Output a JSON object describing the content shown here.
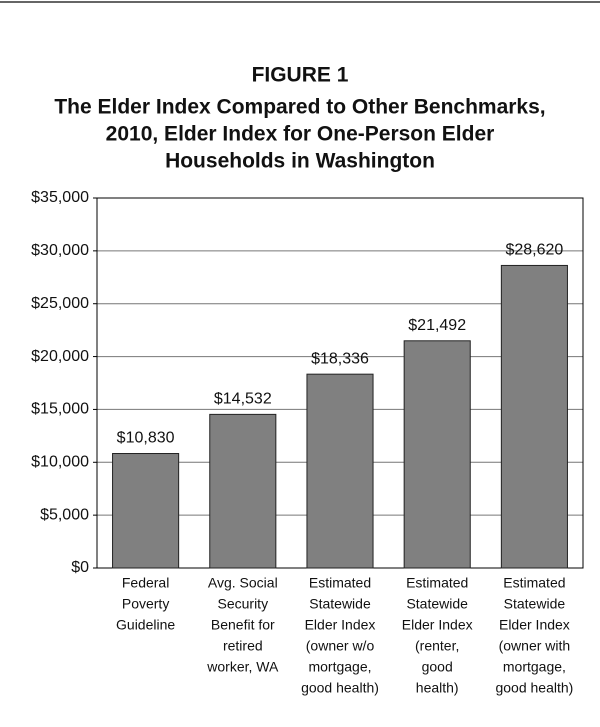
{
  "chart_data": {
    "type": "bar",
    "title": "FIGURE 1",
    "subtitle": [
      "The Elder Index Compared to Other Benchmarks,",
      "2010, Elder Index for One-Person Elder",
      "Households in Washington"
    ],
    "categories": [
      [
        "Federal",
        "Poverty",
        "Guideline"
      ],
      [
        "Avg. Social",
        "Security",
        "Benefit for",
        "retired",
        "worker, WA"
      ],
      [
        "Estimated",
        "Statewide",
        "Elder Index",
        "(owner w/o",
        "mortgage,",
        "good health)"
      ],
      [
        "Estimated",
        "Statewide",
        "Elder Index",
        "(renter,",
        "good",
        "health)"
      ],
      [
        "Estimated",
        "Statewide",
        "Elder Index",
        "(owner with",
        "mortgage,",
        "good health)"
      ]
    ],
    "values": [
      10830,
      14532,
      18336,
      21492,
      28620
    ],
    "value_labels": [
      "$10,830",
      "$14,532",
      "$18,336",
      "$21,492",
      "$28,620"
    ],
    "color": "#808080",
    "ylim": [
      0,
      35000
    ],
    "yticks": [
      {
        "value": 0,
        "label": "$0"
      },
      {
        "value": 5000,
        "label": "$5,000"
      },
      {
        "value": 10000,
        "label": "$10,000"
      },
      {
        "value": 15000,
        "label": "$15,000"
      },
      {
        "value": 20000,
        "label": "$20,000"
      },
      {
        "value": 25000,
        "label": "$25,000"
      },
      {
        "value": 30000,
        "label": "$30,000"
      },
      {
        "value": 35000,
        "label": "$35,000"
      }
    ],
    "grid": true
  }
}
